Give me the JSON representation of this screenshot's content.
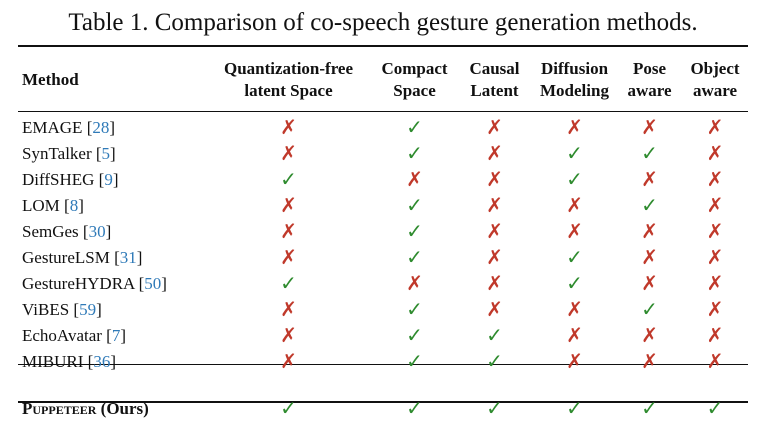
{
  "caption": "Table 1. Comparison of co-speech gesture generation methods.",
  "columns": {
    "method": "Method",
    "quantization_free": [
      "Quantization-free",
      "latent Space"
    ],
    "compact": [
      "Compact",
      "Space"
    ],
    "causal": [
      "Causal",
      "Latent"
    ],
    "diffusion": [
      "Diffusion",
      "Modeling"
    ],
    "pose": [
      "Pose",
      "aware"
    ],
    "object": [
      "Object",
      "aware"
    ]
  },
  "marks": {
    "yes": "✓",
    "no": "✗",
    "yes_color": "#2e8b2e",
    "no_color": "#c0392b"
  },
  "rows": [
    {
      "name": "EMAGE [",
      "ref": "28",
      "close": "]",
      "values": [
        false,
        true,
        false,
        false,
        false,
        false
      ]
    },
    {
      "name": "SynTalker [",
      "ref": "5",
      "close": "]",
      "values": [
        false,
        true,
        false,
        true,
        true,
        false
      ]
    },
    {
      "name": "DiffSHEG [",
      "ref": "9",
      "close": "]",
      "values": [
        true,
        false,
        false,
        true,
        false,
        false
      ]
    },
    {
      "name": "LOM [",
      "ref": "8",
      "close": "]",
      "values": [
        false,
        true,
        false,
        false,
        true,
        false
      ]
    },
    {
      "name": "SemGes [",
      "ref": "30",
      "close": "]",
      "values": [
        false,
        true,
        false,
        false,
        false,
        false
      ]
    },
    {
      "name": "GestureLSM [",
      "ref": "31",
      "close": "]",
      "values": [
        false,
        true,
        false,
        true,
        false,
        false
      ]
    },
    {
      "name": "GestureHYDRA [",
      "ref": "50",
      "close": "]",
      "values": [
        true,
        false,
        false,
        true,
        false,
        false
      ]
    },
    {
      "name": "ViBES [",
      "ref": "59",
      "close": "]",
      "values": [
        false,
        true,
        false,
        false,
        true,
        false
      ]
    },
    {
      "name": "EchoAvatar [",
      "ref": "7",
      "close": "]",
      "values": [
        false,
        true,
        true,
        false,
        false,
        false
      ]
    },
    {
      "name": "MIBURI [",
      "ref": "36",
      "close": "]",
      "values": [
        false,
        true,
        true,
        false,
        false,
        false
      ]
    }
  ],
  "ours": {
    "name": "Puppeteer",
    "suffix": " (Ours)",
    "values": [
      true,
      true,
      true,
      true,
      true,
      true
    ]
  }
}
